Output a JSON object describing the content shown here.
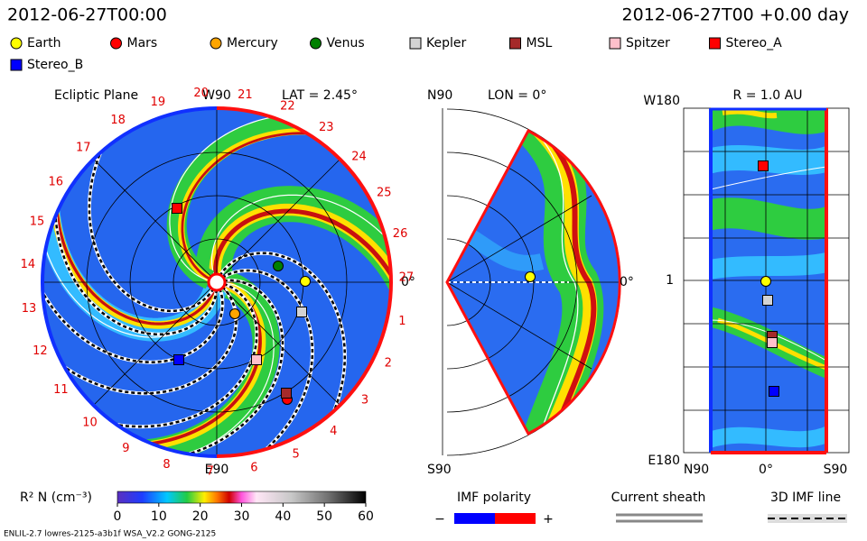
{
  "header": {
    "time": "2012-06-27T00:00",
    "elapsed": "2012-06-27T00 +0.00 day"
  },
  "legend": [
    {
      "name": "Earth",
      "color": "#ffff00",
      "shape": "circle"
    },
    {
      "name": "Mars",
      "color": "#ff0000",
      "shape": "circle"
    },
    {
      "name": "Mercury",
      "color": "#ffa500",
      "shape": "circle"
    },
    {
      "name": "Venus",
      "color": "#008000",
      "shape": "circle"
    },
    {
      "name": "Kepler",
      "color": "#d3d3d3",
      "shape": "square"
    },
    {
      "name": "MSL",
      "color": "#a52a2a",
      "shape": "square"
    },
    {
      "name": "Spitzer",
      "color": "#ffc0cb",
      "shape": "square"
    },
    {
      "name": "Stereo_A",
      "color": "#ff0000",
      "shape": "square"
    },
    {
      "name": "Stereo_B",
      "color": "#0000ff",
      "shape": "square"
    }
  ],
  "ecliptic": {
    "title": "Ecliptic Plane",
    "top": "W90",
    "lat": "LAT = 2.45°",
    "right": "0°",
    "bottom": "E90",
    "carrington": [
      1,
      2,
      3,
      4,
      5,
      6,
      7,
      8,
      9,
      10,
      11,
      12,
      13,
      14,
      15,
      16,
      17,
      18,
      19,
      20,
      21,
      22,
      23,
      24,
      25,
      26,
      27
    ]
  },
  "meridional": {
    "top": "N90",
    "lon": "LON = 0°",
    "right": "0°",
    "bottom": "S90"
  },
  "shell": {
    "title": "R = 1.0 AU",
    "top": "W180",
    "bottom": "E180",
    "left": "1",
    "x_labels": [
      "N90",
      "0°",
      "S90"
    ]
  },
  "colorbar": {
    "label": "R² N (cm⁻³)",
    "range": [
      0,
      60
    ],
    "ticks": [
      0,
      10,
      20,
      30,
      40,
      50,
      60
    ]
  },
  "imf_polarity": {
    "title": "IMF polarity",
    "minus": "−",
    "plus": "+",
    "colors": [
      "#0000ff",
      "#ff0000"
    ]
  },
  "current_sheath": {
    "title": "Current sheath"
  },
  "imf_line": {
    "title": "3D IMF line"
  },
  "footer": "ENLIL-2.7 lowres-2125-a3b1f WSA_V2.2 GONG-2125"
}
